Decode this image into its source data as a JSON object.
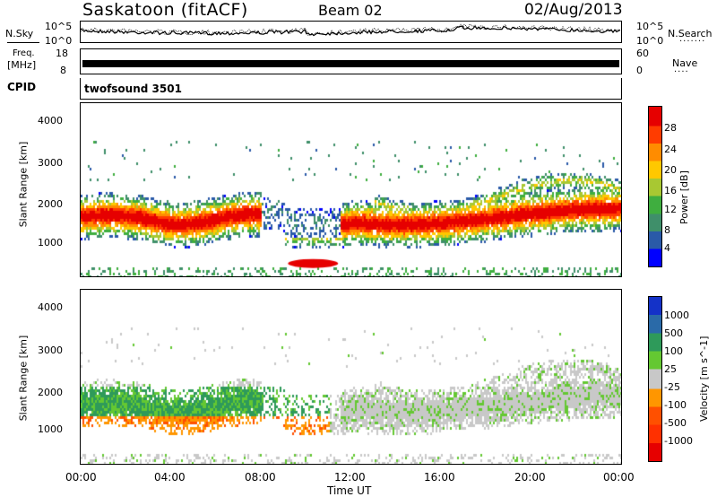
{
  "header": {
    "station": "Saskatoon (fitACF)",
    "beam": "Beam 02",
    "date": "02/Aug/2013"
  },
  "noise_panel": {
    "left_label": "N.Sky",
    "right_label": "N.Search",
    "left_ticks": [
      "10^5",
      "10^0"
    ],
    "right_ticks": [
      "10^5",
      "10^0"
    ]
  },
  "freq_panel": {
    "left_label_line1": "Freq.",
    "left_label_line2": "[MHz]",
    "left_ticks": [
      "18",
      "8"
    ],
    "right_ticks": [
      "60",
      "0"
    ],
    "right_label": "Nave"
  },
  "cpid": {
    "label": "CPID",
    "value": "twofsound 3501"
  },
  "x_axis": {
    "label": "Time UT",
    "ticks": [
      "00:00",
      "04:00",
      "08:00",
      "12:00",
      "16:00",
      "20:00",
      "00:00"
    ]
  },
  "colors": {
    "power": [
      "#0000ff",
      "#2a5aa8",
      "#3f8f6a",
      "#3fae3f",
      "#a8c832",
      "#ffc800",
      "#ff8c00",
      "#ff3c00",
      "#e60000"
    ],
    "velocity": [
      "#e60000",
      "#ff5000",
      "#ff9600",
      "#c8c8c8",
      "#c8c8c8",
      "#64c832",
      "#2e9a5a",
      "#2a6aa8",
      "#1432c8"
    ]
  },
  "chart_data": [
    {
      "type": "heatmap",
      "quantity": "Power",
      "ylabel": "Slant Range [km]",
      "xlabel": "Time UT",
      "ylim": [
        180,
        4500
      ],
      "xlim_hours": [
        0,
        24
      ],
      "yticks": [
        "1000",
        "2000",
        "3000",
        "4000"
      ],
      "colorbar": {
        "label": "Power [dB]",
        "ticks": [
          "4",
          "8",
          "12",
          "16",
          "20",
          "24",
          "28"
        ]
      }
    },
    {
      "type": "heatmap",
      "quantity": "Velocity",
      "ylabel": "Slant Range [km]",
      "xlabel": "Time UT",
      "ylim": [
        180,
        4500
      ],
      "xlim_hours": [
        0,
        24
      ],
      "yticks": [
        "1000",
        "2000",
        "3000",
        "4000"
      ],
      "colorbar": {
        "label": "Velocity [m s^-1]",
        "ticks": [
          "1000",
          "500",
          "100",
          "25",
          "-25",
          "-100",
          "-500",
          "-1000"
        ]
      }
    }
  ]
}
